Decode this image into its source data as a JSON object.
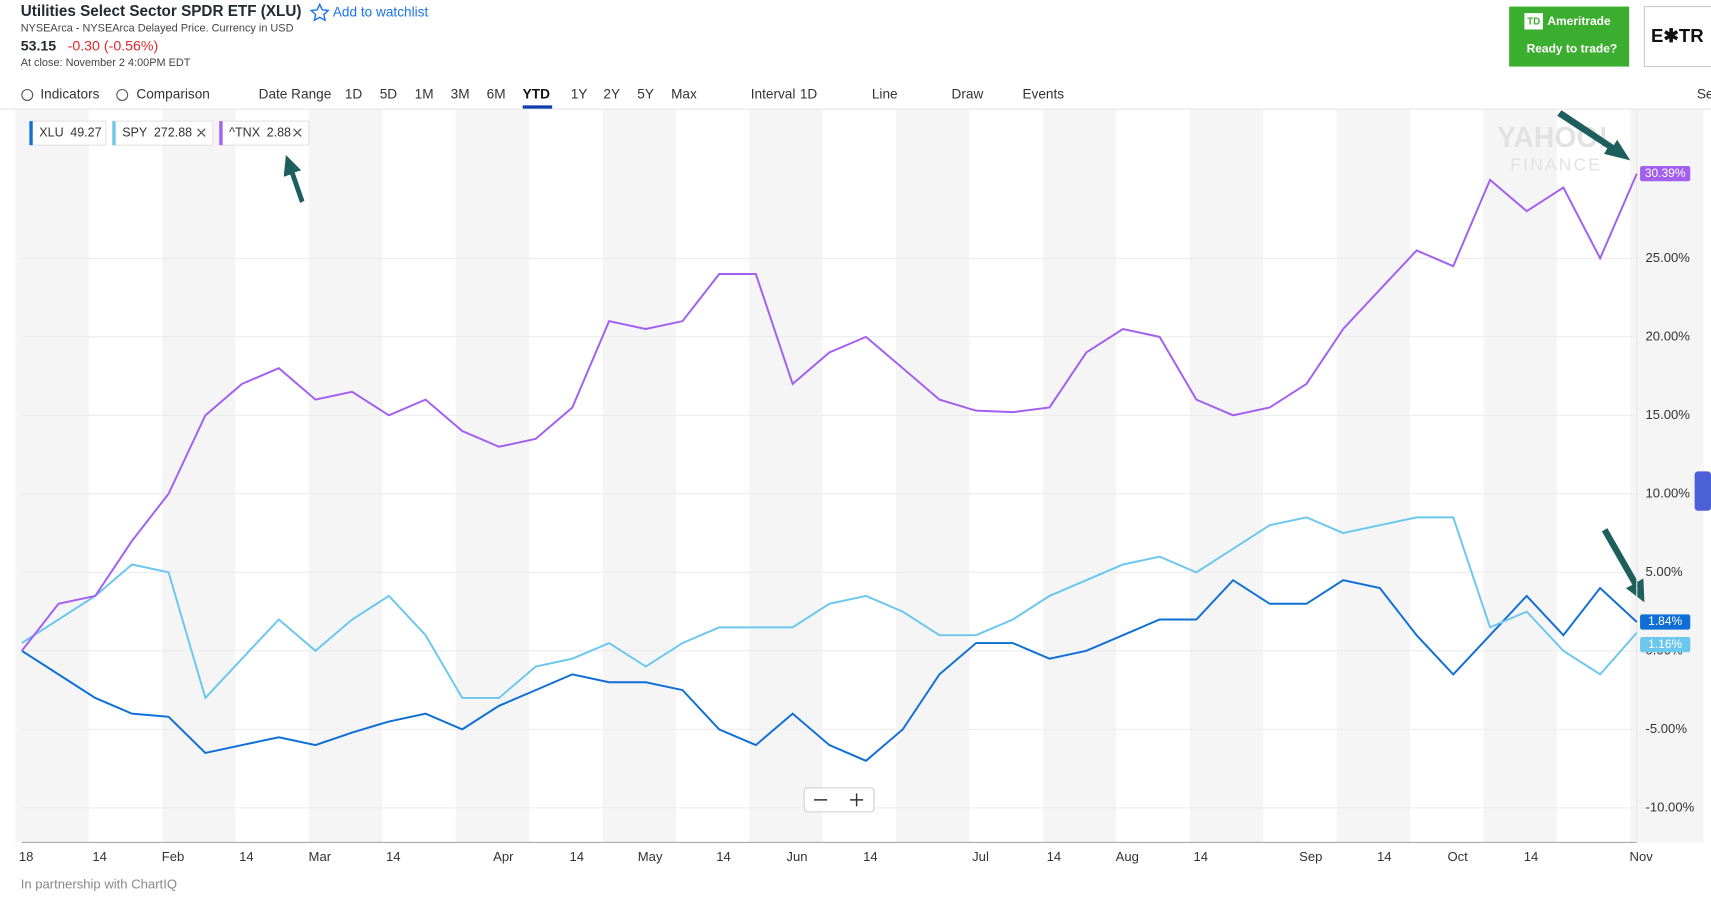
{
  "header": {
    "title": "Utilities Select Sector SPDR ETF (XLU)",
    "watchlist": "Add to watchlist",
    "exchange": "NYSEArca - NYSEArca Delayed Price. Currency in USD",
    "price": "53.15",
    "change": "-0.30 (-0.56%)",
    "close_time": "At close: November 2 4:00PM EDT"
  },
  "ad": {
    "logo": "TD",
    "brand": "Ameritrade",
    "tagline": "Ready to trade?",
    "second": "E✱TR"
  },
  "toolbar": [
    "Indicators",
    "Comparison",
    "Date Range",
    "1D",
    "5D",
    "1M",
    "3M",
    "6M",
    "YTD",
    "1Y",
    "2Y",
    "5Y",
    "Max",
    "Interval",
    "1D",
    "Line",
    "Draw",
    "Events",
    "Se"
  ],
  "watermark": [
    "YAHOO!",
    "FINANCE"
  ],
  "footer": "In partnership with ChartIQ",
  "chart_data": {
    "type": "line",
    "categories": [
      "18",
      null,
      "14",
      null,
      "Feb",
      null,
      "14",
      null,
      "Mar",
      null,
      "14",
      null,
      null,
      "Apr",
      null,
      "14",
      null,
      "May",
      null,
      "14",
      null,
      "Jun",
      null,
      "14",
      null,
      null,
      "Jul",
      null,
      "14",
      null,
      "Aug",
      null,
      "14",
      null,
      null,
      "Sep",
      null,
      "14",
      null,
      "Oct",
      null,
      "14",
      null,
      null,
      "Nov"
    ],
    "series": [
      {
        "name": "XLU",
        "price": 49.27,
        "color": "#0f6fd6",
        "end_label": "1.84%",
        "values": [
          0,
          -1.5,
          -3,
          -4,
          -4.2,
          -6.5,
          -6,
          -5.5,
          -6,
          -5.2,
          -4.5,
          -4,
          -5,
          -3.5,
          -2.5,
          -1.5,
          -2,
          -2,
          -2.5,
          -5,
          -6,
          -4,
          -6,
          -7,
          -5,
          -1.5,
          0.5,
          0.5,
          -0.5,
          0,
          1,
          2,
          2,
          4.5,
          3,
          3,
          4.5,
          4,
          1,
          -1.5,
          1,
          3.5,
          1,
          4,
          1.84
        ]
      },
      {
        "name": "SPY",
        "price": 272.88,
        "color": "#6cc7ef",
        "end_label": "1.16%",
        "values": [
          0.5,
          2,
          3.5,
          5.5,
          5,
          -3,
          -0.5,
          2,
          0,
          2,
          3.5,
          1,
          -3,
          -3,
          -1,
          -0.5,
          0.5,
          -1,
          0.5,
          1.5,
          1.5,
          1.5,
          3,
          3.5,
          2.5,
          1,
          1,
          2,
          3.5,
          4.5,
          5.5,
          6,
          5,
          6.5,
          8,
          8.5,
          7.5,
          8,
          8.5,
          8.5,
          1.5,
          2.5,
          0,
          -1.5,
          1.16
        ]
      },
      {
        "name": "^TNX",
        "price": 2.88,
        "color": "#a35ff0",
        "end_label": "30.39%",
        "values": [
          0,
          3,
          3.5,
          7,
          10,
          15,
          17,
          18,
          16,
          16.5,
          15,
          16,
          14,
          13,
          13.5,
          15.5,
          21,
          20.5,
          21,
          24,
          24,
          17,
          19,
          20,
          18,
          16,
          15.3,
          15.2,
          15.5,
          19,
          20.5,
          20,
          16,
          15,
          15.5,
          17,
          20.5,
          23,
          25.5,
          24.5,
          30,
          28,
          29.5,
          25,
          30.39
        ]
      }
    ],
    "ylim": [
      -12.2,
      34.5
    ],
    "yticks": [
      {
        "value": -10,
        "label": "-10.00%"
      },
      {
        "value": -5,
        "label": "-5.00%"
      },
      {
        "value": 0,
        "label": "0.00%"
      },
      {
        "value": 5,
        "label": "5.00%"
      },
      {
        "value": 10,
        "label": "10.00%"
      },
      {
        "value": 15,
        "label": "15.00%"
      },
      {
        "value": 20,
        "label": "20.00%"
      },
      {
        "value": 25,
        "label": "25.00%"
      }
    ],
    "grid": true
  }
}
